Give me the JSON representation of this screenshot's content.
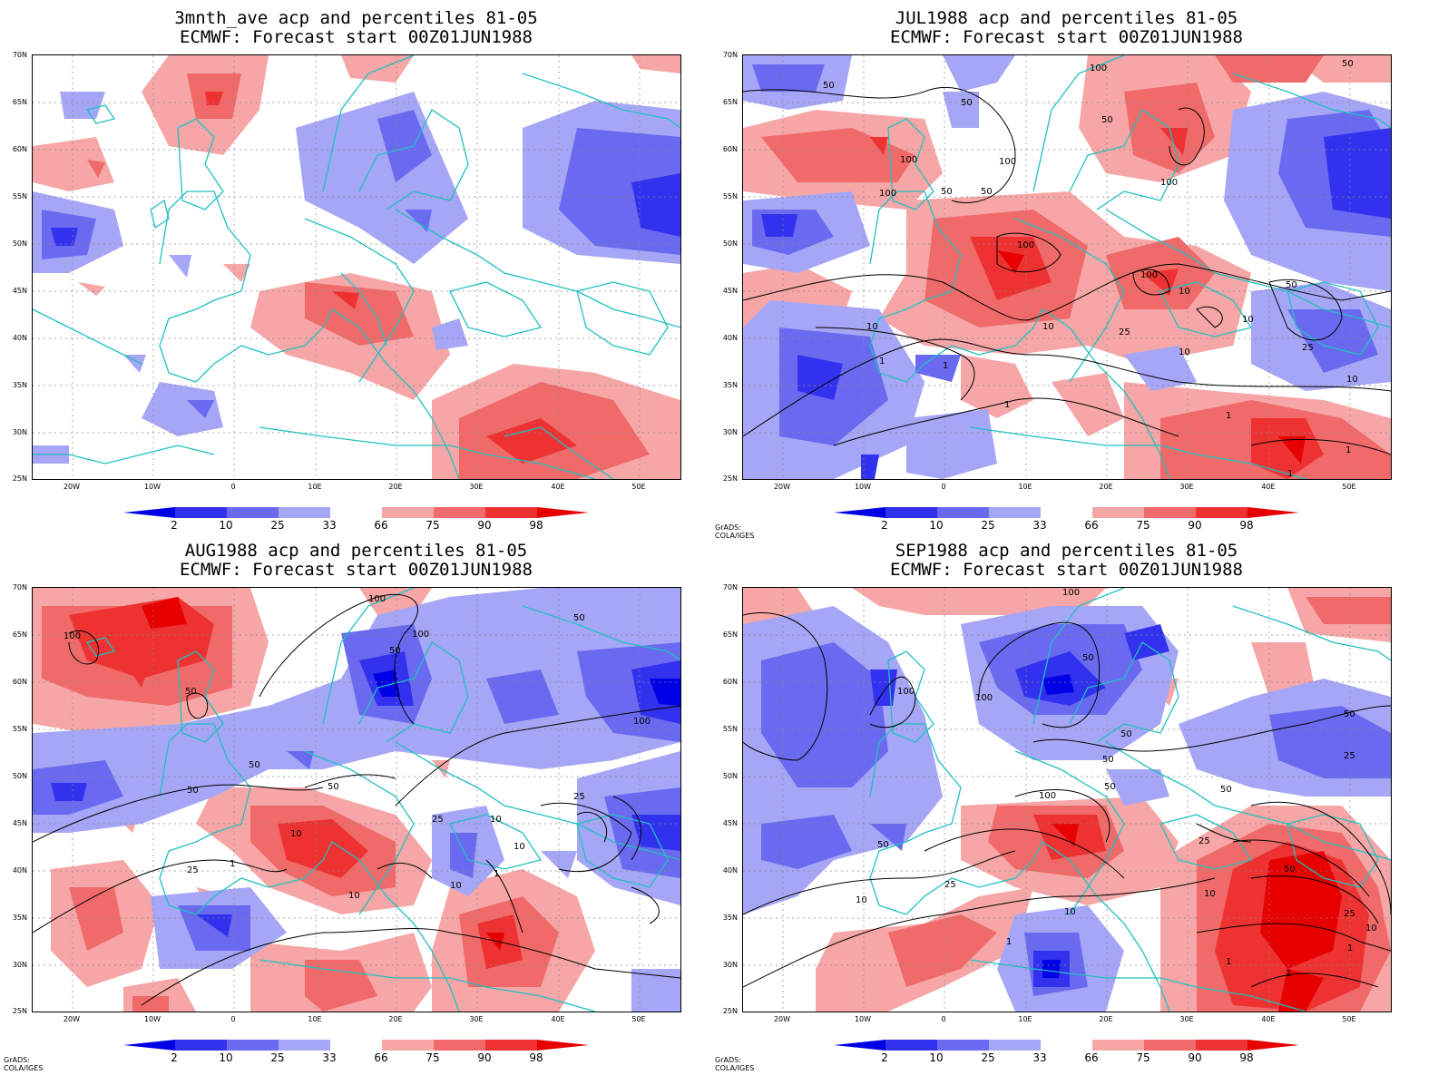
{
  "colorbar": {
    "labels": [
      "2",
      "10",
      "25",
      "33",
      "66",
      "75",
      "90",
      "98"
    ],
    "colors": [
      "#0000e6",
      "#3232ee",
      "#6a6af0",
      "#a6a6f6",
      "#ffffff",
      "#f6a6a6",
      "#f06a6a",
      "#ee3232",
      "#e60000"
    ]
  },
  "axes": {
    "y_labels": [
      "70N",
      "65N",
      "60N",
      "55N",
      "50N",
      "45N",
      "40N",
      "35N",
      "30N",
      "25N"
    ],
    "x_labels": [
      "20W",
      "10W",
      "0",
      "10E",
      "20E",
      "30E",
      "40E",
      "50E"
    ]
  },
  "credit": "GrADS: COLA/IGES",
  "panels": [
    {
      "title_line1": "3mnth_ave acp and percentiles 81-05",
      "title_line2": "ECMWF: Forecast start 00Z01JUN1988"
    },
    {
      "title_line1": "JUL1988 acp and percentiles 81-05",
      "title_line2": "ECMWF: Forecast start 00Z01JUN1988"
    },
    {
      "title_line1": "AUG1988 acp and percentiles 81-05",
      "title_line2": "ECMWF: Forecast start 00Z01JUN1988"
    },
    {
      "title_line1": "SEP1988 acp and percentiles 81-05",
      "title_line2": "ECMWF: Forecast start 00Z01JUN1988"
    }
  ],
  "contour_labels": {
    "p1": [
      "100",
      "50",
      "100",
      "100",
      "50",
      "50",
      "100",
      "50",
      "100",
      "50",
      "50",
      "100",
      "10",
      "10",
      "100",
      "50",
      "25",
      "10",
      "10",
      "10",
      "25",
      "10",
      "1",
      "1",
      "1",
      "1",
      "1",
      "1"
    ],
    "p2": [
      "100",
      "100",
      "100",
      "50",
      "50",
      "50",
      "50",
      "100",
      "50",
      "50",
      "25",
      "10",
      "25",
      "10",
      "1",
      "10",
      "25",
      "10",
      "1",
      "10"
    ],
    "p3": [
      "100",
      "100",
      "50",
      "50",
      "100",
      "50",
      "50",
      "50",
      "25",
      "100",
      "50",
      "25",
      "50",
      "10",
      "25",
      "1",
      "10",
      "50",
      "1",
      "1",
      "1",
      "10",
      "25",
      "10"
    ]
  }
}
